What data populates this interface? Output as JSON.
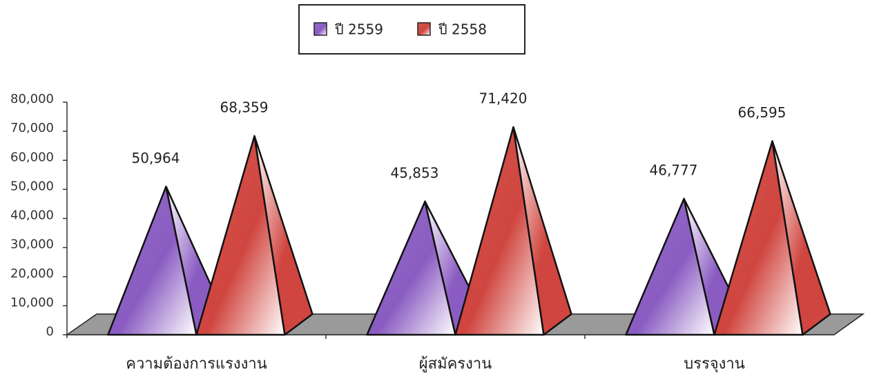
{
  "chart_data": {
    "type": "pyramid",
    "categories": [
      "ความต้องการแรงงาน",
      "ผู้สมัครงาน",
      "บรรจุงาน"
    ],
    "series": [
      {
        "name": "ปี 2559",
        "color": "#8a5cc2",
        "values": [
          50964,
          45853,
          46777
        ],
        "value_labels": [
          "50,964",
          "45,853",
          "46,777"
        ]
      },
      {
        "name": "ปี 2558",
        "color": "#d0453f",
        "values": [
          68359,
          71420,
          66595
        ],
        "value_labels": [
          "68,359",
          "71,420",
          "66,595"
        ]
      }
    ],
    "ylim": [
      0,
      80000
    ],
    "yticks": [
      0,
      {
        "value": 10000,
        "label": "10,000"
      },
      {
        "value": 20000,
        "label": "20,000"
      },
      {
        "value": 30000,
        "label": "30,000"
      },
      {
        "value": 40000,
        "label": "40,000"
      },
      {
        "value": 50000,
        "label": "50,000"
      },
      {
        "value": 60000,
        "label": "60,000"
      },
      {
        "value": 70000,
        "label": "70,000"
      },
      {
        "value": 80000,
        "label": "80,000"
      }
    ]
  }
}
